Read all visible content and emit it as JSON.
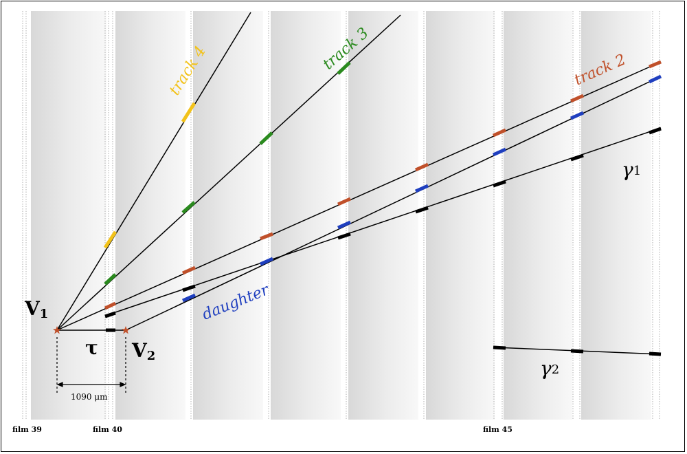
{
  "films": {
    "labels": {
      "film39": "film 39",
      "film40": "film 40",
      "film45": "film 45"
    }
  },
  "tracks": {
    "track4": {
      "label": "track 4",
      "color": "#f2c21a"
    },
    "track3": {
      "label": "track 3",
      "color": "#2a8a1e"
    },
    "track2": {
      "label": "track 2",
      "color": "#c0502a"
    },
    "daughter": {
      "label": "daughter",
      "color": "#1f3fbf"
    },
    "gamma1": {
      "label": "γ",
      "sub": "1",
      "color": "#000000"
    },
    "gamma2": {
      "label": "γ",
      "sub": "2",
      "color": "#000000"
    }
  },
  "vertices": {
    "v1": {
      "label": "V",
      "sub": "1",
      "color": "#c0502a"
    },
    "v2": {
      "label": "V",
      "sub": "2",
      "color": "#c0502a"
    }
  },
  "tau": {
    "label": "τ"
  },
  "distance": {
    "label": "1090 μm"
  }
}
